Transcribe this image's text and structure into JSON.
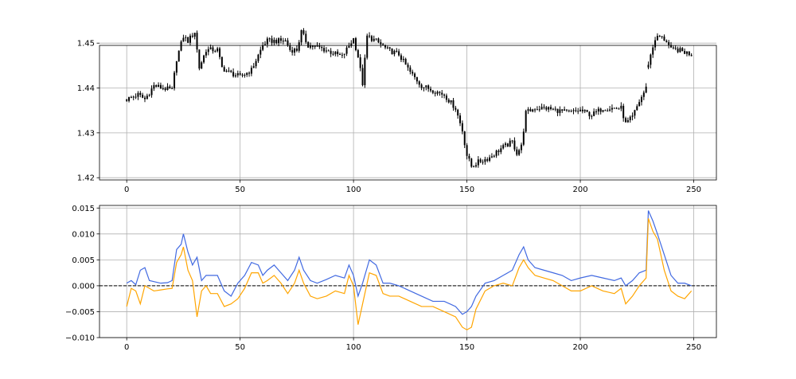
{
  "colors": {
    "candle": "#000000",
    "blue_series": "#4169e1",
    "orange_series": "#ffa500",
    "zero_line": "#000000",
    "grid": "#b0b0b0"
  },
  "chart_data": [
    {
      "type": "candlestick",
      "title": "",
      "xlabel": "",
      "ylabel": "",
      "xlim": [
        -12,
        260
      ],
      "ylim": [
        1.4195,
        1.4495
      ],
      "grid": true,
      "x_ticks": [
        0,
        50,
        100,
        150,
        200,
        250
      ],
      "x_tick_labels": [
        "0",
        "50",
        "100",
        "150",
        "200",
        "250"
      ],
      "y_ticks": [
        1.42,
        1.43,
        1.44,
        1.45
      ],
      "y_tick_labels": [
        "1.42",
        "1.43",
        "1.44",
        "1.45"
      ],
      "x_anchors": [
        0,
        5,
        8,
        12,
        20,
        22,
        25,
        27,
        30,
        32,
        35,
        40,
        42,
        45,
        50,
        55,
        60,
        62,
        65,
        70,
        72,
        75,
        77,
        80,
        85,
        90,
        95,
        100,
        102,
        104,
        106,
        110,
        115,
        120,
        125,
        130,
        135,
        140,
        145,
        148,
        150,
        152,
        155,
        160,
        165,
        170,
        172,
        174,
        176,
        180,
        185,
        190,
        195,
        200,
        205,
        210,
        215,
        218,
        220,
        223,
        226,
        229,
        230,
        233,
        235,
        238,
        240,
        243,
        246,
        249
      ],
      "close_anchors": [
        1.4375,
        1.4385,
        1.4375,
        1.4405,
        1.4395,
        1.4465,
        1.4515,
        1.4505,
        1.4525,
        1.4445,
        1.4485,
        1.4485,
        1.4445,
        1.4435,
        1.4425,
        1.444,
        1.4495,
        1.4505,
        1.4505,
        1.4505,
        1.4485,
        1.4485,
        1.4525,
        1.4495,
        1.449,
        1.448,
        1.447,
        1.451,
        1.447,
        1.441,
        1.4515,
        1.4505,
        1.4485,
        1.4475,
        1.4435,
        1.4405,
        1.4395,
        1.4385,
        1.4355,
        1.4305,
        1.425,
        1.4225,
        1.4235,
        1.4245,
        1.4265,
        1.428,
        1.4255,
        1.427,
        1.4345,
        1.4355,
        1.4355,
        1.435,
        1.4345,
        1.435,
        1.434,
        1.4355,
        1.4355,
        1.4355,
        1.432,
        1.4335,
        1.437,
        1.44,
        1.4455,
        1.451,
        1.4515,
        1.4505,
        1.4485,
        1.4485,
        1.448,
        1.4475
      ],
      "gap_after_index": 229
    },
    {
      "type": "line",
      "title": "",
      "xlabel": "",
      "ylabel": "",
      "xlim": [
        -12,
        260
      ],
      "ylim": [
        -0.01,
        0.0155
      ],
      "grid": true,
      "x_ticks": [
        0,
        50,
        100,
        150,
        200,
        250
      ],
      "x_tick_labels": [
        "0",
        "50",
        "100",
        "150",
        "200",
        "250"
      ],
      "y_ticks": [
        -0.01,
        -0.005,
        0.0,
        0.005,
        0.01,
        0.015
      ],
      "y_tick_labels": [
        "−0.010",
        "−0.005",
        "0.000",
        "0.005",
        "0.010",
        "0.015"
      ],
      "zero_line": 0.0,
      "x": [
        0,
        2,
        4,
        6,
        8,
        10,
        12,
        15,
        18,
        20,
        22,
        24,
        25,
        27,
        29,
        31,
        33,
        35,
        37,
        40,
        43,
        46,
        49,
        52,
        55,
        58,
        60,
        62,
        65,
        68,
        71,
        74,
        76,
        78,
        81,
        84,
        88,
        92,
        96,
        98,
        100,
        102,
        104,
        107,
        110,
        113,
        116,
        120,
        125,
        130,
        135,
        140,
        145,
        148,
        150,
        152,
        154,
        158,
        162,
        166,
        170,
        173,
        175,
        177,
        180,
        184,
        188,
        192,
        196,
        200,
        205,
        210,
        215,
        218,
        220,
        223,
        226,
        229,
        230,
        232,
        234,
        237,
        240,
        243,
        246,
        249
      ],
      "series": [
        {
          "values": [
            0.0005,
            0.001,
            0.0002,
            0.003,
            0.0035,
            0.001,
            0.0008,
            0.0005,
            0.0006,
            0.001,
            0.007,
            0.008,
            0.01,
            0.0065,
            0.004,
            0.0055,
            0.001,
            0.002,
            0.002,
            0.002,
            -0.001,
            -0.002,
            0.0005,
            0.002,
            0.0045,
            0.004,
            0.002,
            0.003,
            0.004,
            0.0025,
            0.001,
            0.003,
            0.0055,
            0.003,
            0.001,
            0.0005,
            0.0012,
            0.002,
            0.0015,
            0.004,
            0.002,
            -0.002,
            0.0005,
            0.005,
            0.004,
            0.0005,
            0.0005,
            0.0,
            -0.001,
            -0.002,
            -0.003,
            -0.003,
            -0.004,
            -0.0055,
            -0.005,
            -0.004,
            -0.002,
            0.0005,
            0.001,
            0.002,
            0.003,
            0.006,
            0.0075,
            0.005,
            0.0035,
            0.003,
            0.0025,
            0.002,
            0.001,
            0.0015,
            0.002,
            0.0015,
            0.001,
            0.0015,
            0.0,
            0.001,
            0.0025,
            0.003,
            0.0145,
            0.0125,
            0.01,
            0.006,
            0.002,
            0.0005,
            0.0005,
            0.0
          ],
          "color_key": "blue_series"
        },
        {
          "values": [
            -0.004,
            -0.0005,
            -0.001,
            -0.0035,
            0.0,
            -0.0005,
            -0.001,
            -0.0008,
            -0.0006,
            -0.0005,
            0.0045,
            0.006,
            0.0075,
            0.003,
            0.001,
            -0.006,
            -0.001,
            0.0,
            -0.0015,
            -0.0015,
            -0.004,
            -0.0035,
            -0.0025,
            -0.0005,
            0.0025,
            0.0025,
            0.0005,
            0.001,
            0.002,
            0.0005,
            -0.0015,
            0.0005,
            0.003,
            0.0005,
            -0.002,
            -0.0025,
            -0.002,
            -0.001,
            -0.0015,
            0.002,
            0.0,
            -0.0075,
            -0.0035,
            0.0025,
            0.002,
            -0.0015,
            -0.002,
            -0.002,
            -0.003,
            -0.004,
            -0.004,
            -0.005,
            -0.006,
            -0.008,
            -0.0085,
            -0.008,
            -0.0045,
            -0.001,
            0.0,
            0.0005,
            0.0,
            0.0035,
            0.005,
            0.0035,
            0.002,
            0.0015,
            0.001,
            0.0,
            -0.001,
            -0.001,
            0.0,
            -0.001,
            -0.0015,
            -0.0005,
            -0.0035,
            -0.002,
            0.0,
            0.0015,
            0.013,
            0.0105,
            0.009,
            0.003,
            -0.001,
            -0.002,
            -0.0025,
            -0.001
          ],
          "color_key": "orange_series"
        }
      ]
    }
  ]
}
